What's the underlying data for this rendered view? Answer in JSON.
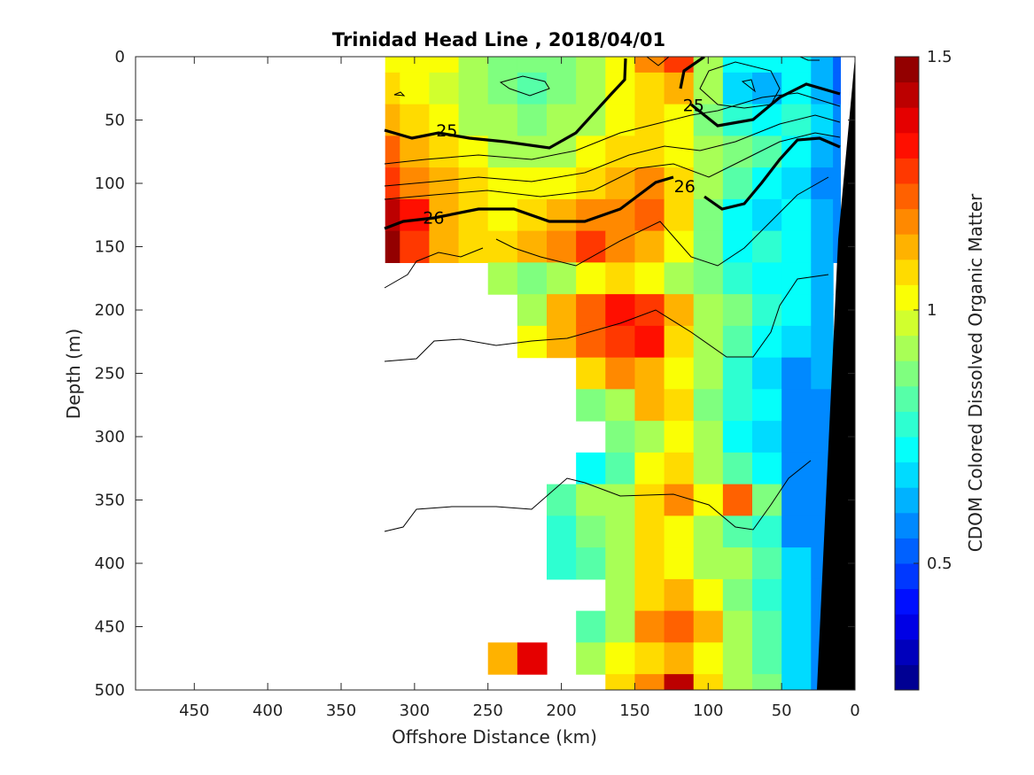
{
  "chart_data": {
    "type": "heatmap",
    "title": "Trinidad Head Line , 2018/04/01",
    "xlabel": "Offshore Distance (km)",
    "ylabel": "Depth (m)",
    "colorbar_label": "CDOM Colored Dissolved Organic Matter",
    "xlim": [
      490,
      0
    ],
    "ylim": [
      0,
      500
    ],
    "x_reversed": true,
    "y_reversed": true,
    "x_ticks": [
      450,
      400,
      350,
      300,
      250,
      200,
      150,
      100,
      50,
      0
    ],
    "y_ticks": [
      0,
      50,
      100,
      150,
      200,
      250,
      300,
      350,
      400,
      450,
      500
    ],
    "colorbar_range": [
      0.25,
      1.5
    ],
    "colorbar_ticks": [
      0.5,
      1,
      1.5
    ],
    "colormap": "jet",
    "colorbar_levels": 25,
    "colormap_stops": [
      "#00007f",
      "#0000ff",
      "#007fff",
      "#00ffff",
      "#7fff7f",
      "#ffff00",
      "#ff7f00",
      "#ff0000",
      "#7f0000"
    ],
    "grid": false,
    "x_grid": [
      320,
      300,
      280,
      260,
      240,
      220,
      200,
      180,
      160,
      140,
      120,
      100,
      80,
      60,
      40,
      20,
      10
    ],
    "y_grid": [
      0,
      25,
      50,
      75,
      100,
      125,
      150,
      175,
      200,
      225,
      250,
      275,
      300,
      325,
      350,
      375,
      400,
      425,
      450,
      475,
      500
    ],
    "values": [
      [
        1.0,
        1.02,
        1.0,
        0.95,
        0.88,
        0.85,
        0.88,
        0.95,
        1.02,
        1.15,
        1.25,
        0.95,
        0.7,
        0.7,
        0.72,
        0.62,
        0.5
      ],
      [
        1.05,
        1.02,
        0.98,
        0.92,
        0.85,
        0.82,
        0.86,
        0.92,
        1.0,
        1.08,
        1.12,
        0.9,
        0.65,
        0.62,
        0.7,
        0.62,
        0.5
      ],
      [
        1.1,
        1.05,
        1.0,
        0.95,
        0.9,
        0.88,
        0.9,
        0.95,
        1.0,
        1.05,
        1.0,
        0.85,
        0.78,
        0.72,
        0.75,
        0.65,
        0.55
      ],
      [
        1.2,
        1.1,
        1.05,
        1.0,
        0.95,
        0.92,
        0.95,
        1.0,
        1.05,
        1.08,
        1.0,
        0.9,
        0.85,
        0.8,
        0.72,
        0.62,
        0.55
      ],
      [
        1.25,
        1.15,
        1.1,
        1.05,
        1.0,
        1.0,
        1.0,
        1.05,
        1.1,
        1.15,
        1.05,
        0.9,
        0.8,
        0.72,
        0.68,
        0.6,
        0.55
      ],
      [
        1.4,
        1.3,
        1.1,
        1.05,
        1.02,
        1.05,
        1.1,
        1.15,
        1.18,
        1.2,
        1.05,
        0.85,
        0.7,
        0.68,
        0.7,
        0.62,
        0.55
      ],
      [
        1.45,
        1.28,
        1.1,
        1.05,
        1.05,
        1.1,
        1.18,
        1.25,
        1.15,
        1.1,
        1.0,
        0.85,
        0.72,
        0.75,
        0.72,
        0.62,
        0.55
      ],
      [
        null,
        null,
        null,
        null,
        0.9,
        0.85,
        0.9,
        1.0,
        1.05,
        1.0,
        0.9,
        0.85,
        0.75,
        0.7,
        0.72,
        0.62,
        null
      ],
      [
        null,
        null,
        null,
        null,
        null,
        0.9,
        1.1,
        1.2,
        1.3,
        1.25,
        1.1,
        0.95,
        0.85,
        0.75,
        0.7,
        0.62,
        null
      ],
      [
        null,
        null,
        null,
        null,
        null,
        1.0,
        1.1,
        1.2,
        1.25,
        1.3,
        1.05,
        0.95,
        0.8,
        0.7,
        0.65,
        0.62,
        null
      ],
      [
        null,
        null,
        null,
        null,
        null,
        null,
        null,
        1.05,
        1.15,
        1.1,
        1.0,
        0.9,
        0.78,
        0.65,
        0.6,
        0.62,
        null
      ],
      [
        null,
        null,
        null,
        null,
        null,
        null,
        null,
        0.85,
        0.9,
        1.1,
        1.05,
        0.85,
        0.75,
        0.7,
        0.6,
        0.6,
        null
      ],
      [
        null,
        null,
        null,
        null,
        null,
        null,
        null,
        null,
        0.85,
        0.95,
        1.0,
        0.9,
        0.7,
        0.65,
        0.6,
        0.55,
        null
      ],
      [
        null,
        null,
        null,
        null,
        null,
        null,
        null,
        0.7,
        0.8,
        1.0,
        1.05,
        0.95,
        0.8,
        0.7,
        0.6,
        0.55,
        null
      ],
      [
        null,
        null,
        null,
        null,
        null,
        null,
        0.8,
        0.9,
        0.95,
        1.05,
        1.15,
        1.0,
        1.2,
        0.85,
        0.6,
        0.55,
        null
      ],
      [
        null,
        null,
        null,
        null,
        null,
        null,
        0.75,
        0.85,
        0.95,
        1.05,
        1.0,
        0.9,
        0.8,
        0.75,
        0.6,
        0.55,
        null
      ],
      [
        null,
        null,
        null,
        null,
        null,
        null,
        0.75,
        0.8,
        0.95,
        1.05,
        1.0,
        0.95,
        0.9,
        0.8,
        0.65,
        0.6,
        null
      ],
      [
        null,
        null,
        null,
        null,
        null,
        null,
        null,
        null,
        0.9,
        1.05,
        1.1,
        1.0,
        0.85,
        0.75,
        0.65,
        0.6,
        null
      ],
      [
        null,
        null,
        null,
        null,
        null,
        null,
        null,
        0.8,
        0.95,
        1.15,
        1.2,
        1.1,
        0.95,
        0.8,
        0.65,
        0.6,
        null
      ],
      [
        null,
        null,
        null,
        null,
        1.1,
        1.35,
        null,
        0.9,
        1.0,
        1.05,
        1.1,
        1.0,
        0.9,
        0.8,
        0.65,
        0.6,
        null
      ],
      [
        null,
        null,
        null,
        null,
        null,
        null,
        null,
        null,
        1.05,
        1.15,
        1.4,
        1.05,
        0.95,
        0.85,
        0.65,
        0.6,
        null
      ]
    ],
    "contour_labels": [
      {
        "text": "25",
        "x": 278,
        "y": 58
      },
      {
        "text": "25",
        "x": 110,
        "y": 38
      },
      {
        "text": "26",
        "x": 287,
        "y": 127
      },
      {
        "text": "26",
        "x": 116,
        "y": 102
      }
    ]
  }
}
